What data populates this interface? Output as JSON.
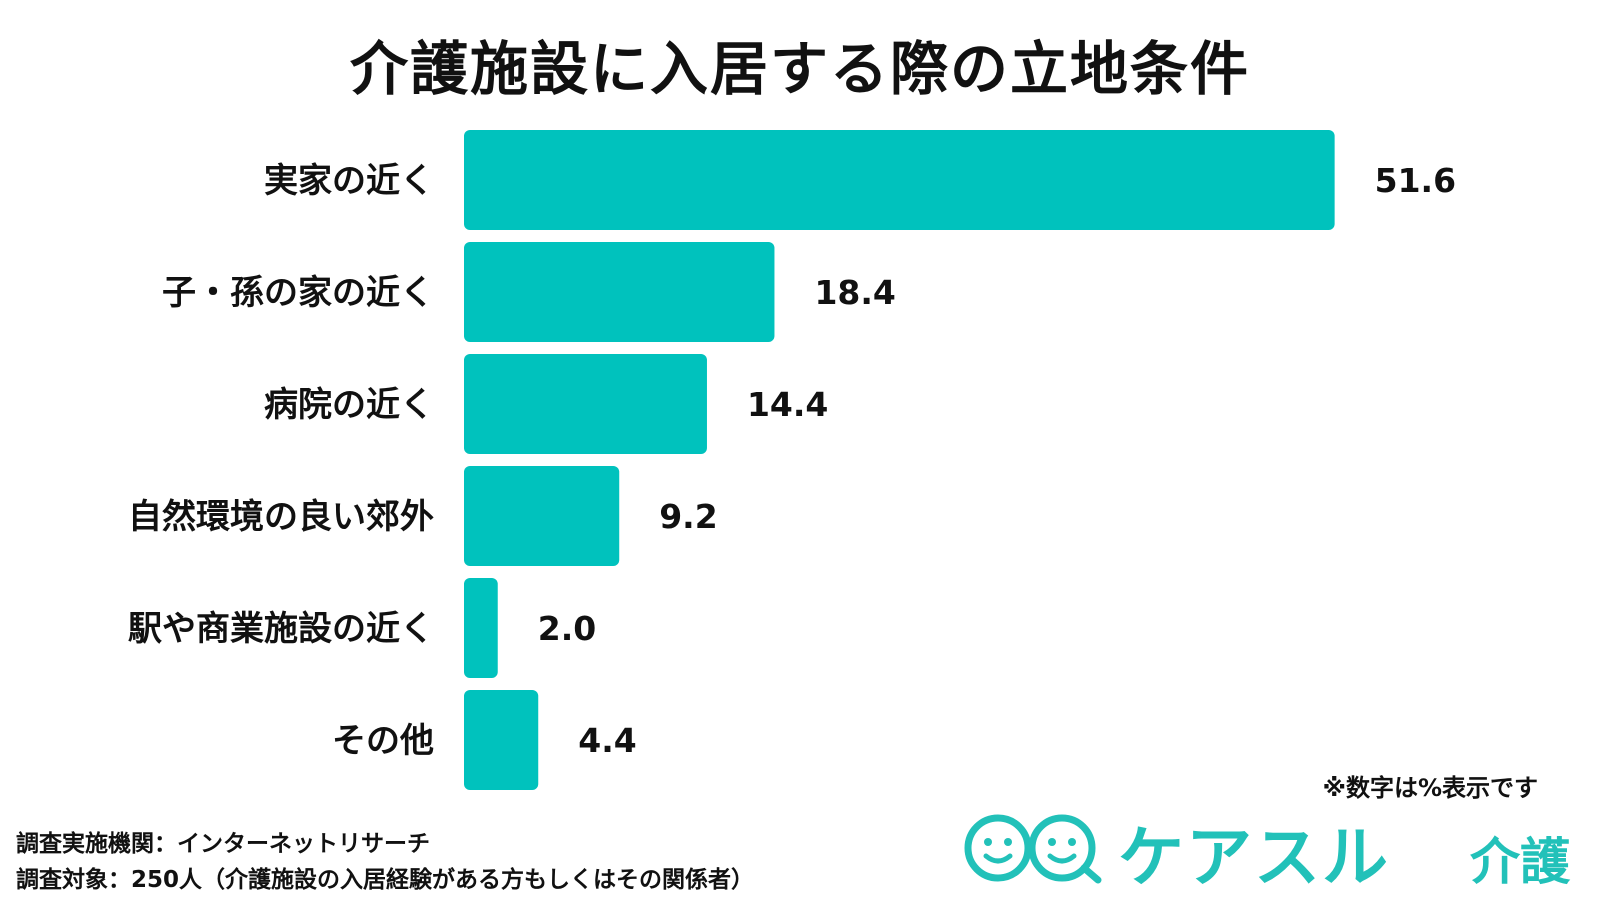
{
  "chart_data": {
    "type": "bar",
    "orientation": "horizontal",
    "title": "介護施設に入居する際の立地条件",
    "categories": [
      "実家の近く",
      "子・孫の家の近く",
      "病院の近く",
      "自然環境の良い郊外",
      "駅や商業施設の近く",
      "その他"
    ],
    "values": [
      51.6,
      18.4,
      14.4,
      9.2,
      2.0,
      4.4
    ],
    "value_labels": [
      "51.6",
      "18.4",
      "14.4",
      "9.2",
      "2.0",
      "4.4"
    ],
    "bar_color": "#00c2bd",
    "xlim": [
      0,
      55
    ],
    "grid": false,
    "legend": "none"
  },
  "unit_note": "※数字は%表示です",
  "footer": {
    "line1": "調査実施機関：インターネットリサーチ",
    "line2": "調査対象：250人（介護施設の入居経験がある方もしくはその関係者）"
  },
  "logo": {
    "text": "ケアスル",
    "sub": "介護",
    "color": "#22c1b9"
  }
}
